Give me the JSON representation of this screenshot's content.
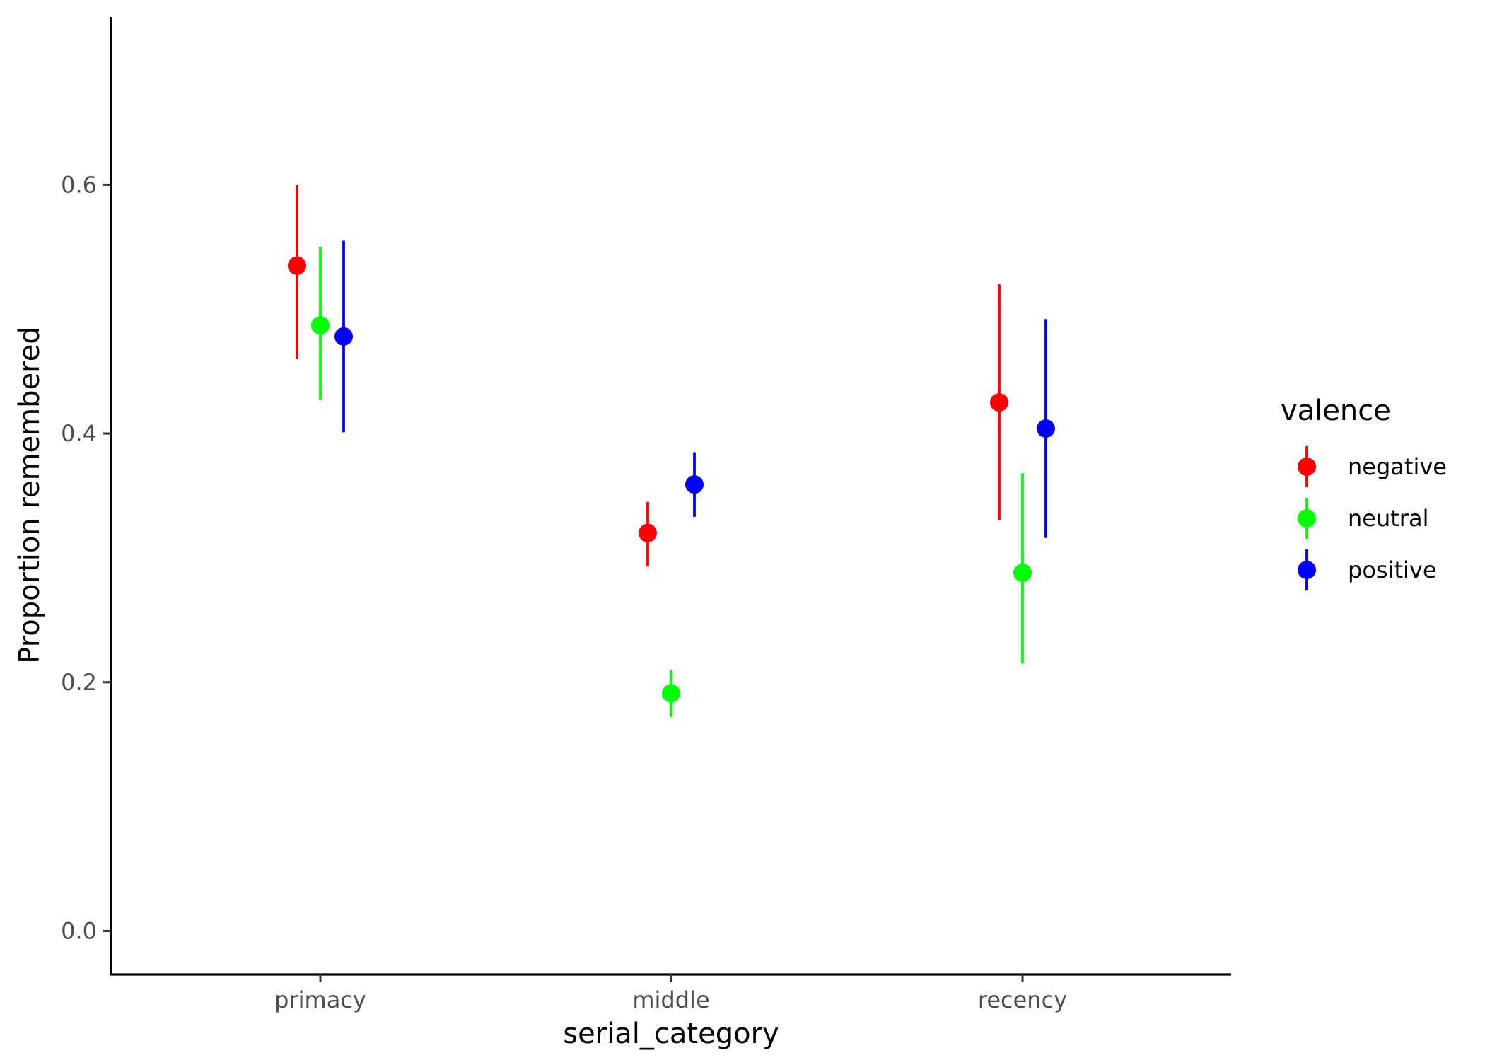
{
  "chart_data": {
    "type": "scatter",
    "subtype": "pointrange",
    "xlabel": "serial_category",
    "ylabel": "Proportion remembered",
    "categories": [
      "primacy",
      "middle",
      "recency"
    ],
    "y_ticks": [
      "0.0",
      "0.2",
      "0.4",
      "0.6"
    ],
    "y_tick_values": [
      0.0,
      0.2,
      0.4,
      0.6
    ],
    "ylim": [
      -0.035,
      0.735
    ],
    "grid": false,
    "legend": {
      "title": "valence",
      "position": "right"
    },
    "series": [
      {
        "name": "negative",
        "color": "#FF0000",
        "values": [
          0.535,
          0.32,
          0.425
        ],
        "lower": [
          0.46,
          0.293,
          0.33
        ],
        "upper": [
          0.6,
          0.345,
          0.52
        ]
      },
      {
        "name": "neutral",
        "color": "#00FF00",
        "values": [
          0.487,
          0.191,
          0.288
        ],
        "lower": [
          0.427,
          0.172,
          0.215
        ],
        "upper": [
          0.55,
          0.21,
          0.368
        ]
      },
      {
        "name": "positive",
        "color": "#0000FF",
        "values": [
          0.478,
          0.359,
          0.404
        ],
        "lower": [
          0.401,
          0.333,
          0.316
        ],
        "upper": [
          0.555,
          0.385,
          0.492
        ]
      }
    ]
  }
}
